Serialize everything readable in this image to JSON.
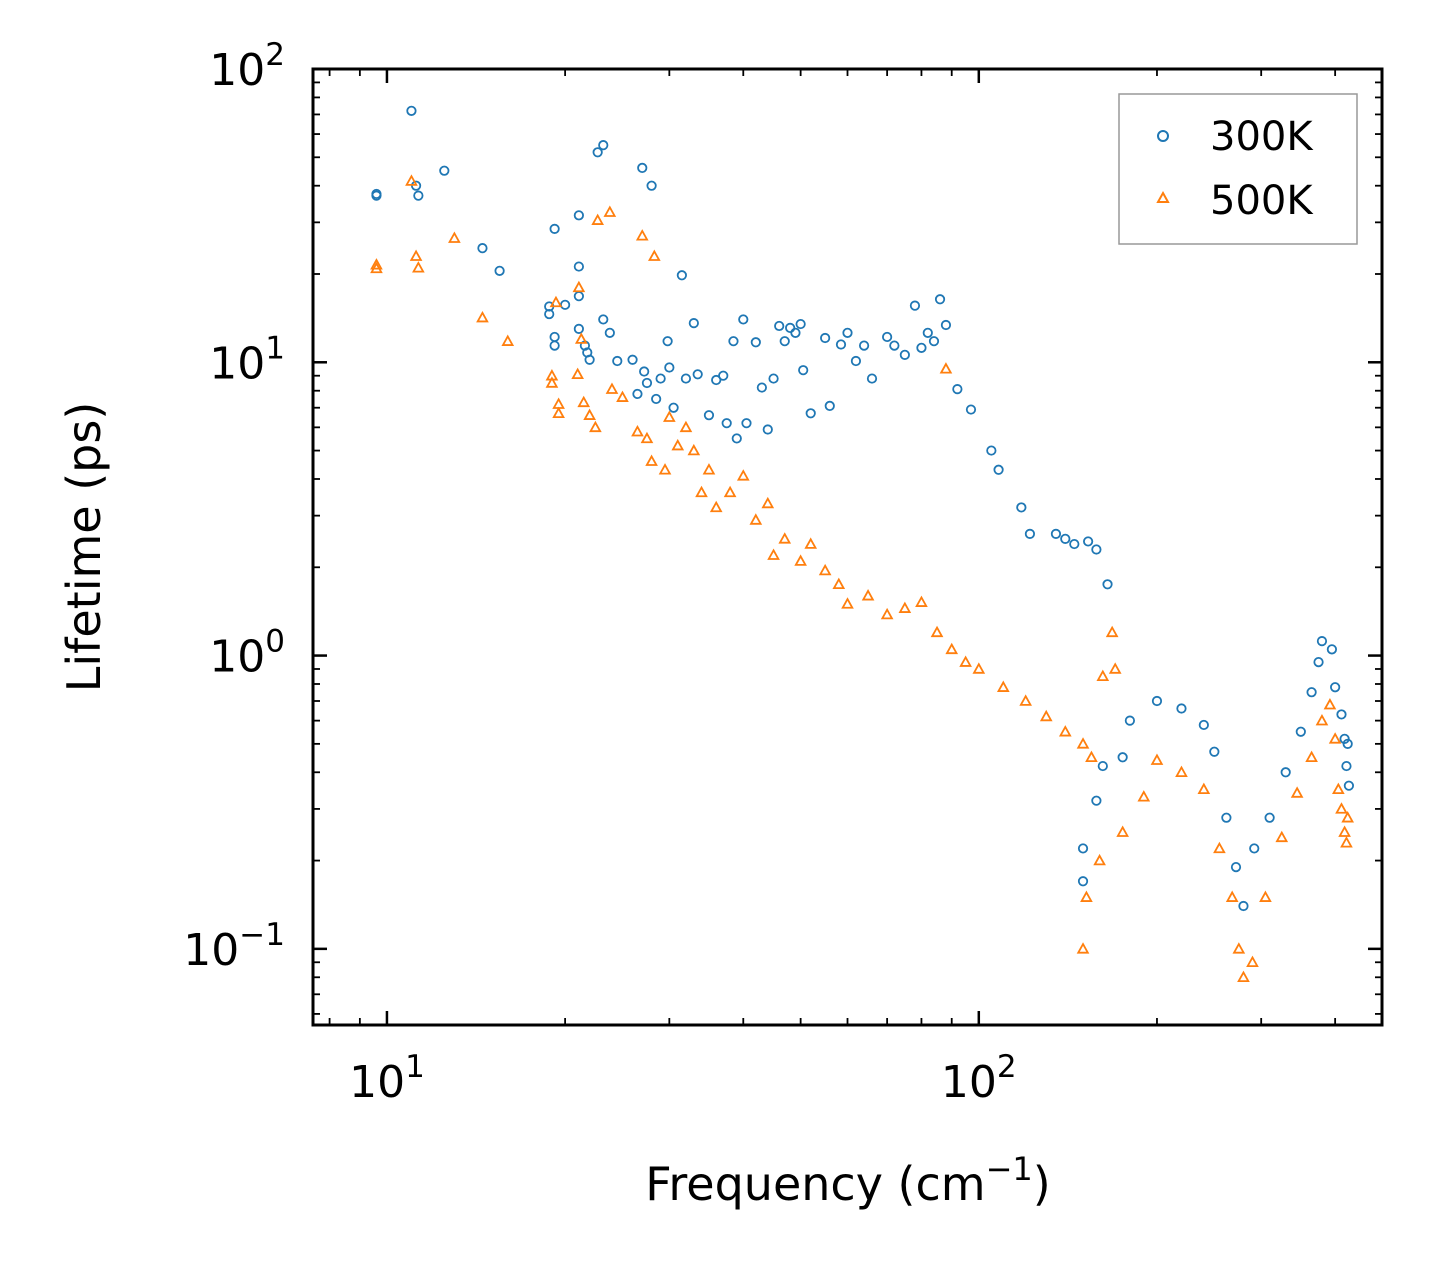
{
  "chart_data": {
    "type": "scatter",
    "title": "",
    "xlabel": "Frequency (cm",
    "xlabel_sup": "−1",
    "xlabel_tail": ")",
    "ylabel": "Lifetime (ps)",
    "x_scale": "log",
    "y_scale": "log",
    "xlim": [
      7.5,
      480
    ],
    "ylim": [
      0.055,
      100
    ],
    "x_ticks": [
      {
        "value": 10,
        "base": "10",
        "exp": "1"
      },
      {
        "value": 100,
        "base": "10",
        "exp": "2"
      }
    ],
    "y_ticks": [
      {
        "value": 0.1,
        "base": "10",
        "exp": "−1"
      },
      {
        "value": 1,
        "base": "10",
        "exp": "0"
      },
      {
        "value": 10,
        "base": "10",
        "exp": "1"
      },
      {
        "value": 100,
        "base": "10",
        "exp": "2"
      }
    ],
    "grid": false,
    "legend_position": "top-right",
    "series": [
      {
        "name": "300K",
        "marker": "circle",
        "color": "#1f77b4",
        "points": [
          [
            9.6,
            37
          ],
          [
            9.6,
            37.5
          ],
          [
            11.0,
            72
          ],
          [
            11.2,
            40
          ],
          [
            11.3,
            37
          ],
          [
            12.5,
            45
          ],
          [
            14.5,
            24.5
          ],
          [
            15.5,
            20.5
          ],
          [
            18.8,
            15.5
          ],
          [
            18.8,
            14.6
          ],
          [
            19.2,
            28.5
          ],
          [
            19.2,
            12.2
          ],
          [
            19.2,
            11.4
          ],
          [
            20.0,
            15.7
          ],
          [
            21.1,
            31.7
          ],
          [
            21.1,
            21.2
          ],
          [
            21.1,
            16.8
          ],
          [
            21.1,
            13
          ],
          [
            21.6,
            11.4
          ],
          [
            21.8,
            10.8
          ],
          [
            22.0,
            10.2
          ],
          [
            22.7,
            52
          ],
          [
            23.2,
            14
          ],
          [
            23.2,
            55
          ],
          [
            23.8,
            12.6
          ],
          [
            24.5,
            10.1
          ],
          [
            26.0,
            10.2
          ],
          [
            26.5,
            7.8
          ],
          [
            27.0,
            46
          ],
          [
            27.2,
            9.3
          ],
          [
            27.5,
            8.5
          ],
          [
            28.0,
            40
          ],
          [
            28.5,
            7.5
          ],
          [
            29.0,
            8.8
          ],
          [
            29.8,
            11.8
          ],
          [
            30.0,
            9.6
          ],
          [
            30.5,
            7.0
          ],
          [
            31.5,
            19.8
          ],
          [
            32.0,
            8.8
          ],
          [
            33.0,
            13.6
          ],
          [
            33.5,
            9.1
          ],
          [
            35.0,
            6.6
          ],
          [
            36.0,
            8.7
          ],
          [
            37.0,
            9.0
          ],
          [
            37.5,
            6.2
          ],
          [
            38.5,
            11.8
          ],
          [
            39.0,
            5.5
          ],
          [
            40.0,
            14.0
          ],
          [
            40.5,
            6.2
          ],
          [
            42.0,
            11.7
          ],
          [
            43.0,
            8.2
          ],
          [
            44.0,
            5.9
          ],
          [
            45.0,
            8.8
          ],
          [
            46.0,
            13.3
          ],
          [
            47.0,
            11.8
          ],
          [
            48.0,
            13.1
          ],
          [
            49.0,
            12.6
          ],
          [
            50.0,
            13.5
          ],
          [
            50.5,
            9.4
          ],
          [
            52.0,
            6.7
          ],
          [
            55.0,
            12.1
          ],
          [
            56.0,
            7.1
          ],
          [
            58.5,
            11.5
          ],
          [
            60.0,
            12.6
          ],
          [
            62.0,
            10.1
          ],
          [
            64.0,
            11.4
          ],
          [
            66.0,
            8.8
          ],
          [
            70.0,
            12.2
          ],
          [
            72.0,
            11.4
          ],
          [
            75.0,
            10.6
          ],
          [
            78.0,
            15.6
          ],
          [
            80.0,
            11.2
          ],
          [
            82.0,
            12.6
          ],
          [
            84.0,
            11.8
          ],
          [
            86.0,
            16.4
          ],
          [
            88.0,
            13.4
          ],
          [
            92.0,
            8.1
          ],
          [
            97.0,
            6.9
          ],
          [
            105.0,
            5.0
          ],
          [
            108.0,
            4.3
          ],
          [
            118.0,
            3.2
          ],
          [
            122.0,
            2.6
          ],
          [
            135.0,
            2.6
          ],
          [
            140.0,
            2.5
          ],
          [
            145.0,
            2.4
          ],
          [
            153.0,
            2.45
          ],
          [
            158.0,
            2.3
          ],
          [
            165.0,
            1.75
          ],
          [
            150.0,
            0.17
          ],
          [
            150.0,
            0.22
          ],
          [
            158.0,
            0.32
          ],
          [
            162.0,
            0.42
          ],
          [
            175.0,
            0.45
          ],
          [
            180.0,
            0.6
          ],
          [
            200.0,
            0.7
          ],
          [
            220.0,
            0.66
          ],
          [
            240.0,
            0.58
          ],
          [
            250.0,
            0.47
          ],
          [
            262.0,
            0.28
          ],
          [
            272.0,
            0.19
          ],
          [
            280.0,
            0.14
          ],
          [
            292.0,
            0.22
          ],
          [
            310.0,
            0.28
          ],
          [
            330.0,
            0.4
          ],
          [
            350.0,
            0.55
          ],
          [
            365.0,
            0.75
          ],
          [
            375.0,
            0.95
          ],
          [
            380.0,
            1.12
          ],
          [
            395.0,
            1.05
          ],
          [
            400.0,
            0.78
          ],
          [
            410.0,
            0.63
          ],
          [
            415.0,
            0.52
          ],
          [
            418.0,
            0.42
          ],
          [
            420.0,
            0.5
          ],
          [
            422.0,
            0.36
          ]
        ]
      },
      {
        "name": "500K",
        "marker": "triangle",
        "color": "#ff7f0e",
        "points": [
          [
            9.6,
            21.5
          ],
          [
            9.6,
            20.9
          ],
          [
            11.0,
            41.5
          ],
          [
            11.2,
            23
          ],
          [
            11.3,
            21
          ],
          [
            13.0,
            26.5
          ],
          [
            14.5,
            14.2
          ],
          [
            16.0,
            11.8
          ],
          [
            19.0,
            9.0
          ],
          [
            19.0,
            8.5
          ],
          [
            19.3,
            16
          ],
          [
            19.5,
            7.2
          ],
          [
            19.5,
            6.7
          ],
          [
            21.0,
            9.1
          ],
          [
            21.1,
            18
          ],
          [
            21.3,
            12
          ],
          [
            21.5,
            7.3
          ],
          [
            22.0,
            6.6
          ],
          [
            22.5,
            6.0
          ],
          [
            22.7,
            30.5
          ],
          [
            23.8,
            32.5
          ],
          [
            24.0,
            8.1
          ],
          [
            25.0,
            7.6
          ],
          [
            26.5,
            5.8
          ],
          [
            27.0,
            27
          ],
          [
            27.5,
            5.5
          ],
          [
            28.0,
            4.6
          ],
          [
            28.3,
            23
          ],
          [
            29.5,
            4.3
          ],
          [
            30.0,
            6.5
          ],
          [
            31.0,
            5.2
          ],
          [
            32.0,
            6.0
          ],
          [
            33.0,
            5.0
          ],
          [
            34.0,
            3.6
          ],
          [
            35.0,
            4.3
          ],
          [
            36.0,
            3.2
          ],
          [
            38.0,
            3.6
          ],
          [
            40.0,
            4.1
          ],
          [
            42.0,
            2.9
          ],
          [
            44.0,
            3.3
          ],
          [
            45.0,
            2.2
          ],
          [
            47.0,
            2.5
          ],
          [
            50.0,
            2.1
          ],
          [
            52.0,
            2.4
          ],
          [
            55.0,
            1.95
          ],
          [
            58.0,
            1.75
          ],
          [
            60.0,
            1.5
          ],
          [
            65.0,
            1.6
          ],
          [
            70.0,
            1.38
          ],
          [
            75.0,
            1.45
          ],
          [
            80.0,
            1.52
          ],
          [
            85.0,
            1.2
          ],
          [
            88.0,
            9.5
          ],
          [
            90.0,
            1.05
          ],
          [
            95.0,
            0.95
          ],
          [
            100.0,
            0.9
          ],
          [
            110.0,
            0.78
          ],
          [
            120.0,
            0.7
          ],
          [
            130.0,
            0.62
          ],
          [
            140.0,
            0.55
          ],
          [
            150.0,
            0.5
          ],
          [
            155.0,
            0.45
          ],
          [
            162.0,
            0.85
          ],
          [
            168.0,
            1.2
          ],
          [
            170.0,
            0.9
          ],
          [
            150.0,
            0.1
          ],
          [
            152.0,
            0.15
          ],
          [
            160.0,
            0.2
          ],
          [
            175.0,
            0.25
          ],
          [
            190.0,
            0.33
          ],
          [
            200.0,
            0.44
          ],
          [
            220.0,
            0.4
          ],
          [
            240.0,
            0.35
          ],
          [
            255.0,
            0.22
          ],
          [
            268.0,
            0.15
          ],
          [
            275.0,
            0.1
          ],
          [
            280.0,
            0.08
          ],
          [
            290.0,
            0.09
          ],
          [
            305.0,
            0.15
          ],
          [
            325.0,
            0.24
          ],
          [
            345.0,
            0.34
          ],
          [
            365.0,
            0.45
          ],
          [
            380.0,
            0.6
          ],
          [
            392.0,
            0.68
          ],
          [
            400.0,
            0.52
          ],
          [
            405.0,
            0.35
          ],
          [
            410.0,
            0.3
          ],
          [
            415.0,
            0.25
          ],
          [
            418.0,
            0.23
          ],
          [
            420.0,
            0.28
          ]
        ]
      }
    ]
  }
}
